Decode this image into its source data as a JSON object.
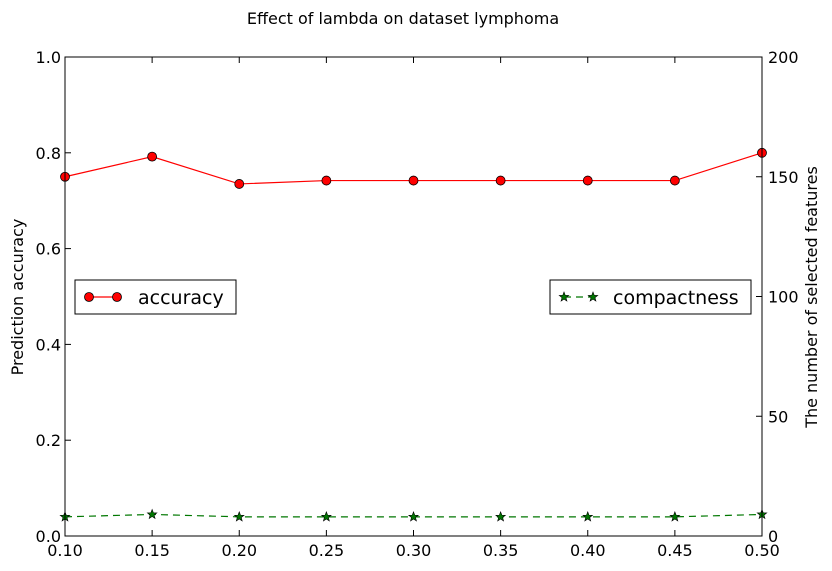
{
  "chart_data": {
    "type": "line",
    "title": "Effect of lambda on dataset lymphoma",
    "xlabel": "",
    "ylabel": "Prediction accuracy",
    "y2label": "The number of selected features",
    "xlim": [
      0.1,
      0.5
    ],
    "ylim": [
      0.0,
      1.0
    ],
    "y2lim": [
      0,
      200
    ],
    "x": [
      0.1,
      0.15,
      0.2,
      0.25,
      0.3,
      0.35,
      0.4,
      0.45,
      0.5
    ],
    "x_tick_labels": [
      "0.10",
      "0.15",
      "0.20",
      "0.25",
      "0.30",
      "0.35",
      "0.40",
      "0.45",
      "0.50"
    ],
    "y_tick_labels": [
      "0.0",
      "0.2",
      "0.4",
      "0.6",
      "0.8",
      "1.0"
    ],
    "y_ticks": [
      0.0,
      0.2,
      0.4,
      0.6,
      0.8,
      1.0
    ],
    "y2_tick_labels": [
      "0",
      "50",
      "100",
      "150",
      "200"
    ],
    "y2_ticks": [
      0,
      50,
      100,
      150,
      200
    ],
    "grid": false,
    "series": [
      {
        "name": "accuracy",
        "axis": "left",
        "color": "#ff0000",
        "marker": "circle",
        "line_style": "solid",
        "values": [
          0.75,
          0.792,
          0.735,
          0.742,
          0.742,
          0.742,
          0.742,
          0.742,
          0.8
        ],
        "legend_position": "center-left"
      },
      {
        "name": "compactness",
        "axis": "right",
        "color": "#007700",
        "marker": "star",
        "line_style": "dashed",
        "values": [
          8,
          9,
          8,
          8,
          8,
          8,
          8,
          8,
          9
        ],
        "legend_position": "center-right"
      }
    ]
  }
}
